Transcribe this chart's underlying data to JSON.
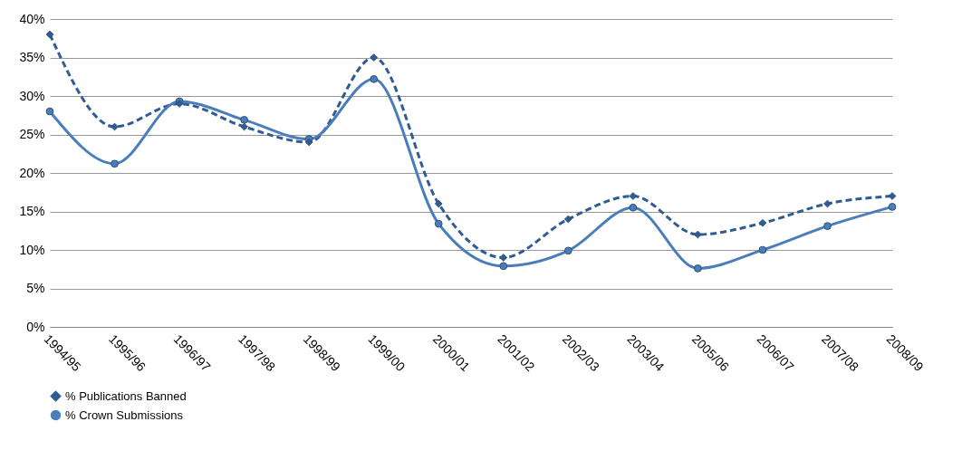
{
  "chart_data": {
    "type": "line",
    "categories": [
      "1994/95",
      "1995/96",
      "1996/97",
      "1997/98",
      "1998/99",
      "1999/00",
      "2000/01",
      "2001/02",
      "2002/03",
      "2003/04",
      "2005/06",
      "2006/07",
      "2007/08",
      "2008/09"
    ],
    "series": [
      {
        "name": "% Publications Banned",
        "color": "#2e5c93",
        "marker": "diamond",
        "line_style": "dashed",
        "values": [
          38,
          26,
          29,
          26,
          24,
          35,
          16,
          9,
          14,
          17,
          12,
          13.5,
          16,
          17
        ]
      },
      {
        "name": "% Crown Submissions",
        "color": "#4a7ebb",
        "marker": "circle",
        "line_style": "solid",
        "values": [
          28,
          21.2,
          29.3,
          26.9,
          24.4,
          32.2,
          13.4,
          7.9,
          9.9,
          15.5,
          7.6,
          10,
          13.1,
          15.6
        ]
      }
    ],
    "ylim": [
      0,
      40
    ],
    "yticks": [
      {
        "value": 0,
        "label": "0%"
      },
      {
        "value": 5,
        "label": "5%"
      },
      {
        "value": 10,
        "label": "10%"
      },
      {
        "value": 15,
        "label": "15%"
      },
      {
        "value": 20,
        "label": "20%"
      },
      {
        "value": 25,
        "label": "25%"
      },
      {
        "value": 30,
        "label": "30%"
      },
      {
        "value": 35,
        "label": "35%"
      },
      {
        "value": 40,
        "label": "40%"
      }
    ],
    "grid": "y",
    "legend": "bottom"
  }
}
